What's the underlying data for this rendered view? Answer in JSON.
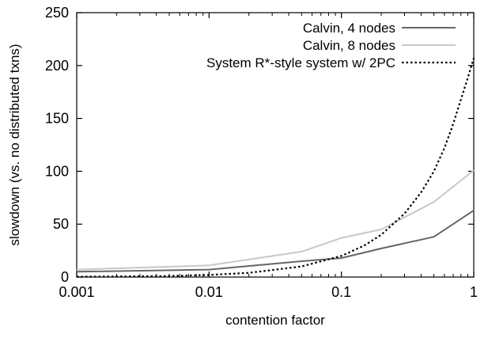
{
  "chart_data": {
    "type": "line",
    "xlabel": "contention factor",
    "ylabel": "slowdown (vs. no distributed txns)",
    "x_scale": "log",
    "xlim": [
      0.001,
      1
    ],
    "ylim": [
      0,
      250
    ],
    "x_ticks": [
      0.001,
      0.01,
      0.1,
      1
    ],
    "x_tick_labels": [
      "0.001",
      "0.01",
      "0.1",
      "1"
    ],
    "y_ticks": [
      0,
      50,
      100,
      150,
      200,
      250
    ],
    "y_tick_labels": [
      "0",
      "50",
      "100",
      "150",
      "200",
      "250"
    ],
    "grid": false,
    "legend_position": "top-right",
    "series": [
      {
        "name": "Calvin, 4 nodes",
        "color": "#666666",
        "style": "solid",
        "x": [
          0.001,
          0.01,
          0.05,
          0.1,
          0.2,
          0.5,
          1
        ],
        "y": [
          5,
          7,
          15,
          18,
          27,
          38,
          63
        ]
      },
      {
        "name": "Calvin, 8 nodes",
        "color": "#c8c8c8",
        "style": "solid",
        "x": [
          0.001,
          0.01,
          0.05,
          0.1,
          0.2,
          0.5,
          1
        ],
        "y": [
          7,
          11,
          24,
          37,
          45,
          71,
          101
        ]
      },
      {
        "name": "System R*-style system w/ 2PC",
        "color": "#000000",
        "style": "dotted",
        "x": [
          0.001,
          0.002,
          0.005,
          0.01,
          0.02,
          0.05,
          0.1,
          0.15,
          0.2,
          0.3,
          0.4,
          0.5,
          0.6,
          0.7,
          0.8,
          0.9,
          1
        ],
        "y": [
          0.3,
          0.5,
          1,
          2,
          4,
          10,
          20,
          30,
          40,
          60,
          80,
          100,
          122,
          145,
          168,
          188,
          207
        ]
      }
    ]
  }
}
